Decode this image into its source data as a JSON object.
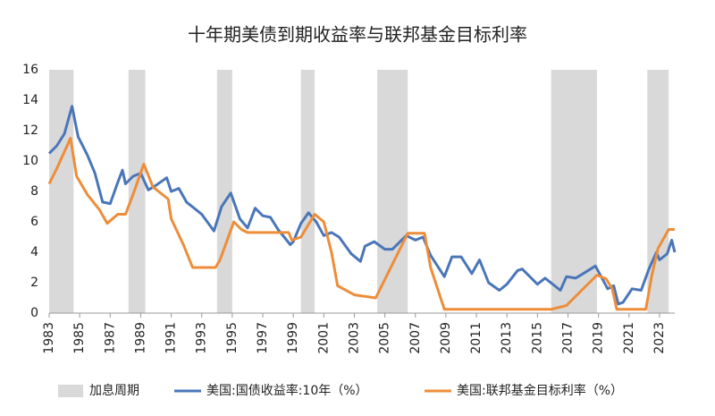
{
  "chart_data": {
    "type": "line",
    "title": "十年期美债到期收益率与联邦基金目标利率",
    "xlim": [
      1983,
      2024
    ],
    "xticks": [
      1983,
      1985,
      1987,
      1989,
      1991,
      1993,
      1995,
      1997,
      1999,
      2001,
      2003,
      2005,
      2007,
      2009,
      2011,
      2013,
      2015,
      2017,
      2019,
      2021,
      2023
    ],
    "ylim": [
      0,
      16
    ],
    "yticks": [
      0,
      2,
      4,
      6,
      8,
      10,
      12,
      14,
      16
    ],
    "periods_name": "加息周期",
    "periods_color": "#d9d9d9",
    "periods": [
      [
        1983.0,
        1984.6
      ],
      [
        1988.2,
        1989.3
      ],
      [
        1994.0,
        1995.0
      ],
      [
        1999.5,
        2000.4
      ],
      [
        2004.5,
        2006.5
      ],
      [
        2015.9,
        2018.9
      ],
      [
        2022.2,
        2023.6
      ]
    ],
    "series": [
      {
        "name": "美国:国债收益率:10年（%）",
        "color": "#4a76b8",
        "x": [
          1983.0,
          1983.5,
          1984.0,
          1984.5,
          1984.9,
          1985.5,
          1986.0,
          1986.5,
          1987.0,
          1987.5,
          1987.8,
          1988.0,
          1988.5,
          1989.0,
          1989.5,
          1990.0,
          1990.7,
          1991.0,
          1991.5,
          1992.0,
          1992.5,
          1993.0,
          1993.8,
          1994.3,
          1994.9,
          1995.5,
          1996.0,
          1996.5,
          1997.0,
          1997.5,
          1998.0,
          1998.8,
          1999.0,
          1999.5,
          2000.0,
          2000.5,
          2001.0,
          2001.5,
          2002.0,
          2002.8,
          2003.4,
          2003.7,
          2004.3,
          2005.0,
          2005.5,
          2006.4,
          2007.0,
          2007.5,
          2008.0,
          2008.9,
          2009.4,
          2010.0,
          2010.7,
          2011.2,
          2011.8,
          2012.5,
          2013.0,
          2013.7,
          2014.0,
          2015.0,
          2015.5,
          2016.5,
          2016.9,
          2017.5,
          2018.0,
          2018.8,
          2019.6,
          2020.0,
          2020.3,
          2020.6,
          2021.2,
          2021.8,
          2022.3,
          2022.8,
          2023.0,
          2023.5,
          2023.8,
          2024.0
        ],
        "values": [
          10.5,
          11.0,
          11.8,
          13.6,
          11.6,
          10.4,
          9.2,
          7.3,
          7.2,
          8.6,
          9.4,
          8.5,
          9.0,
          9.2,
          8.1,
          8.4,
          8.9,
          8.0,
          8.2,
          7.3,
          6.9,
          6.5,
          5.4,
          7.0,
          7.9,
          6.2,
          5.6,
          6.9,
          6.4,
          6.3,
          5.5,
          4.5,
          4.7,
          5.9,
          6.6,
          6.0,
          5.1,
          5.3,
          5.0,
          3.9,
          3.4,
          4.4,
          4.7,
          4.2,
          4.2,
          5.1,
          4.8,
          5.0,
          3.8,
          2.4,
          3.7,
          3.7,
          2.6,
          3.5,
          2.0,
          1.5,
          1.9,
          2.8,
          2.9,
          1.9,
          2.3,
          1.5,
          2.4,
          2.3,
          2.6,
          3.1,
          1.6,
          1.8,
          0.6,
          0.7,
          1.6,
          1.5,
          2.9,
          4.0,
          3.5,
          3.9,
          4.8,
          4.0
        ]
      },
      {
        "name": "美国:联邦基金目标利率（%）",
        "color": "#ed8d3a",
        "x": [
          1983.0,
          1983.5,
          1984.4,
          1984.8,
          1985.5,
          1986.3,
          1986.8,
          1987.5,
          1988.0,
          1988.5,
          1989.2,
          1989.8,
          1990.8,
          1991.0,
          1991.8,
          1992.4,
          1993.9,
          1994.2,
          1995.1,
          1995.6,
          1996.0,
          1998.7,
          1998.9,
          1999.5,
          2000.4,
          2001.0,
          2001.5,
          2001.9,
          2003.0,
          2004.4,
          2006.5,
          2007.6,
          2008.0,
          2008.9,
          2015.9,
          2016.9,
          2018.9,
          2019.5,
          2019.9,
          2020.2,
          2022.1,
          2022.5,
          2022.9,
          2023.6,
          2024.0
        ],
        "values": [
          8.5,
          9.5,
          11.5,
          9.0,
          7.8,
          6.8,
          5.9,
          6.5,
          6.5,
          7.8,
          9.8,
          8.3,
          7.5,
          6.2,
          4.5,
          3.0,
          3.0,
          3.5,
          6.0,
          5.5,
          5.3,
          5.3,
          4.8,
          5.0,
          6.5,
          6.0,
          4.0,
          1.8,
          1.2,
          1.0,
          5.25,
          5.25,
          3.0,
          0.25,
          0.25,
          0.5,
          2.5,
          2.25,
          1.6,
          0.25,
          0.25,
          2.5,
          4.25,
          5.5,
          5.5
        ]
      }
    ]
  }
}
